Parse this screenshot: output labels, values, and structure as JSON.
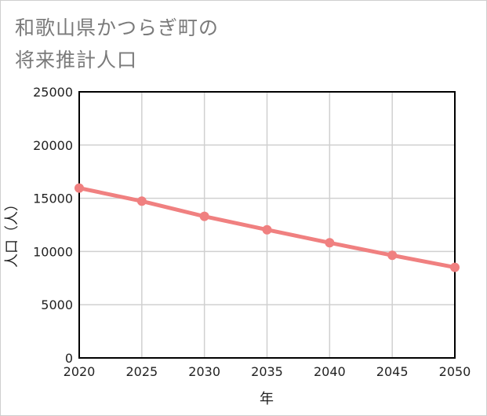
{
  "chart_data": {
    "type": "line",
    "title_line1": "和歌山県かつらぎ町の",
    "title_line2": "将来推計人口",
    "xlabel": "年",
    "ylabel": "人口（人）",
    "x": [
      2020,
      2025,
      2030,
      2035,
      2040,
      2045,
      2050
    ],
    "x_tick_labels": [
      "2020",
      "2025",
      "2030",
      "2035",
      "2040",
      "2045",
      "2050"
    ],
    "y_ticks": [
      0,
      5000,
      10000,
      15000,
      20000,
      25000
    ],
    "y_tick_labels": [
      "0",
      "5000",
      "10000",
      "15000",
      "20000",
      "25000"
    ],
    "xlim": [
      2020,
      2050
    ],
    "ylim": [
      0,
      25000
    ],
    "grid": true,
    "series": [
      {
        "name": "人口",
        "values": [
          15960,
          14730,
          13300,
          12040,
          10820,
          9640,
          8510
        ],
        "color": "#f08080"
      }
    ]
  }
}
